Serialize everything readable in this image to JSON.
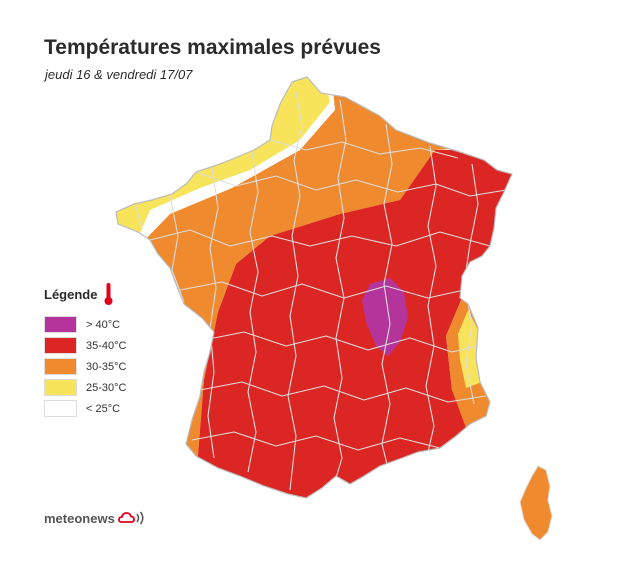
{
  "header": {
    "title": "Températures maximales prévues",
    "subtitle": "jeudi 16 & vendredi 17/07"
  },
  "legend": {
    "title": "Légende",
    "items": [
      {
        "label": "> 40°C",
        "color": "#b4349c"
      },
      {
        "label": "35-40°C",
        "color": "#dc2624"
      },
      {
        "label": "30-35°C",
        "color": "#ef8a2f"
      },
      {
        "label": "25-30°C",
        "color": "#f7e45a"
      },
      {
        "label": "< 25°C",
        "color": "#ffffff"
      }
    ]
  },
  "map": {
    "border_color": "#dddddd",
    "outline_color": "#bbbbbb"
  },
  "logo": {
    "text": "meteonews",
    "icon": "cloud-signal-icon",
    "color": "#e2001a"
  },
  "thermometer": {
    "icon": "thermometer-icon",
    "color": "#e2001a"
  }
}
